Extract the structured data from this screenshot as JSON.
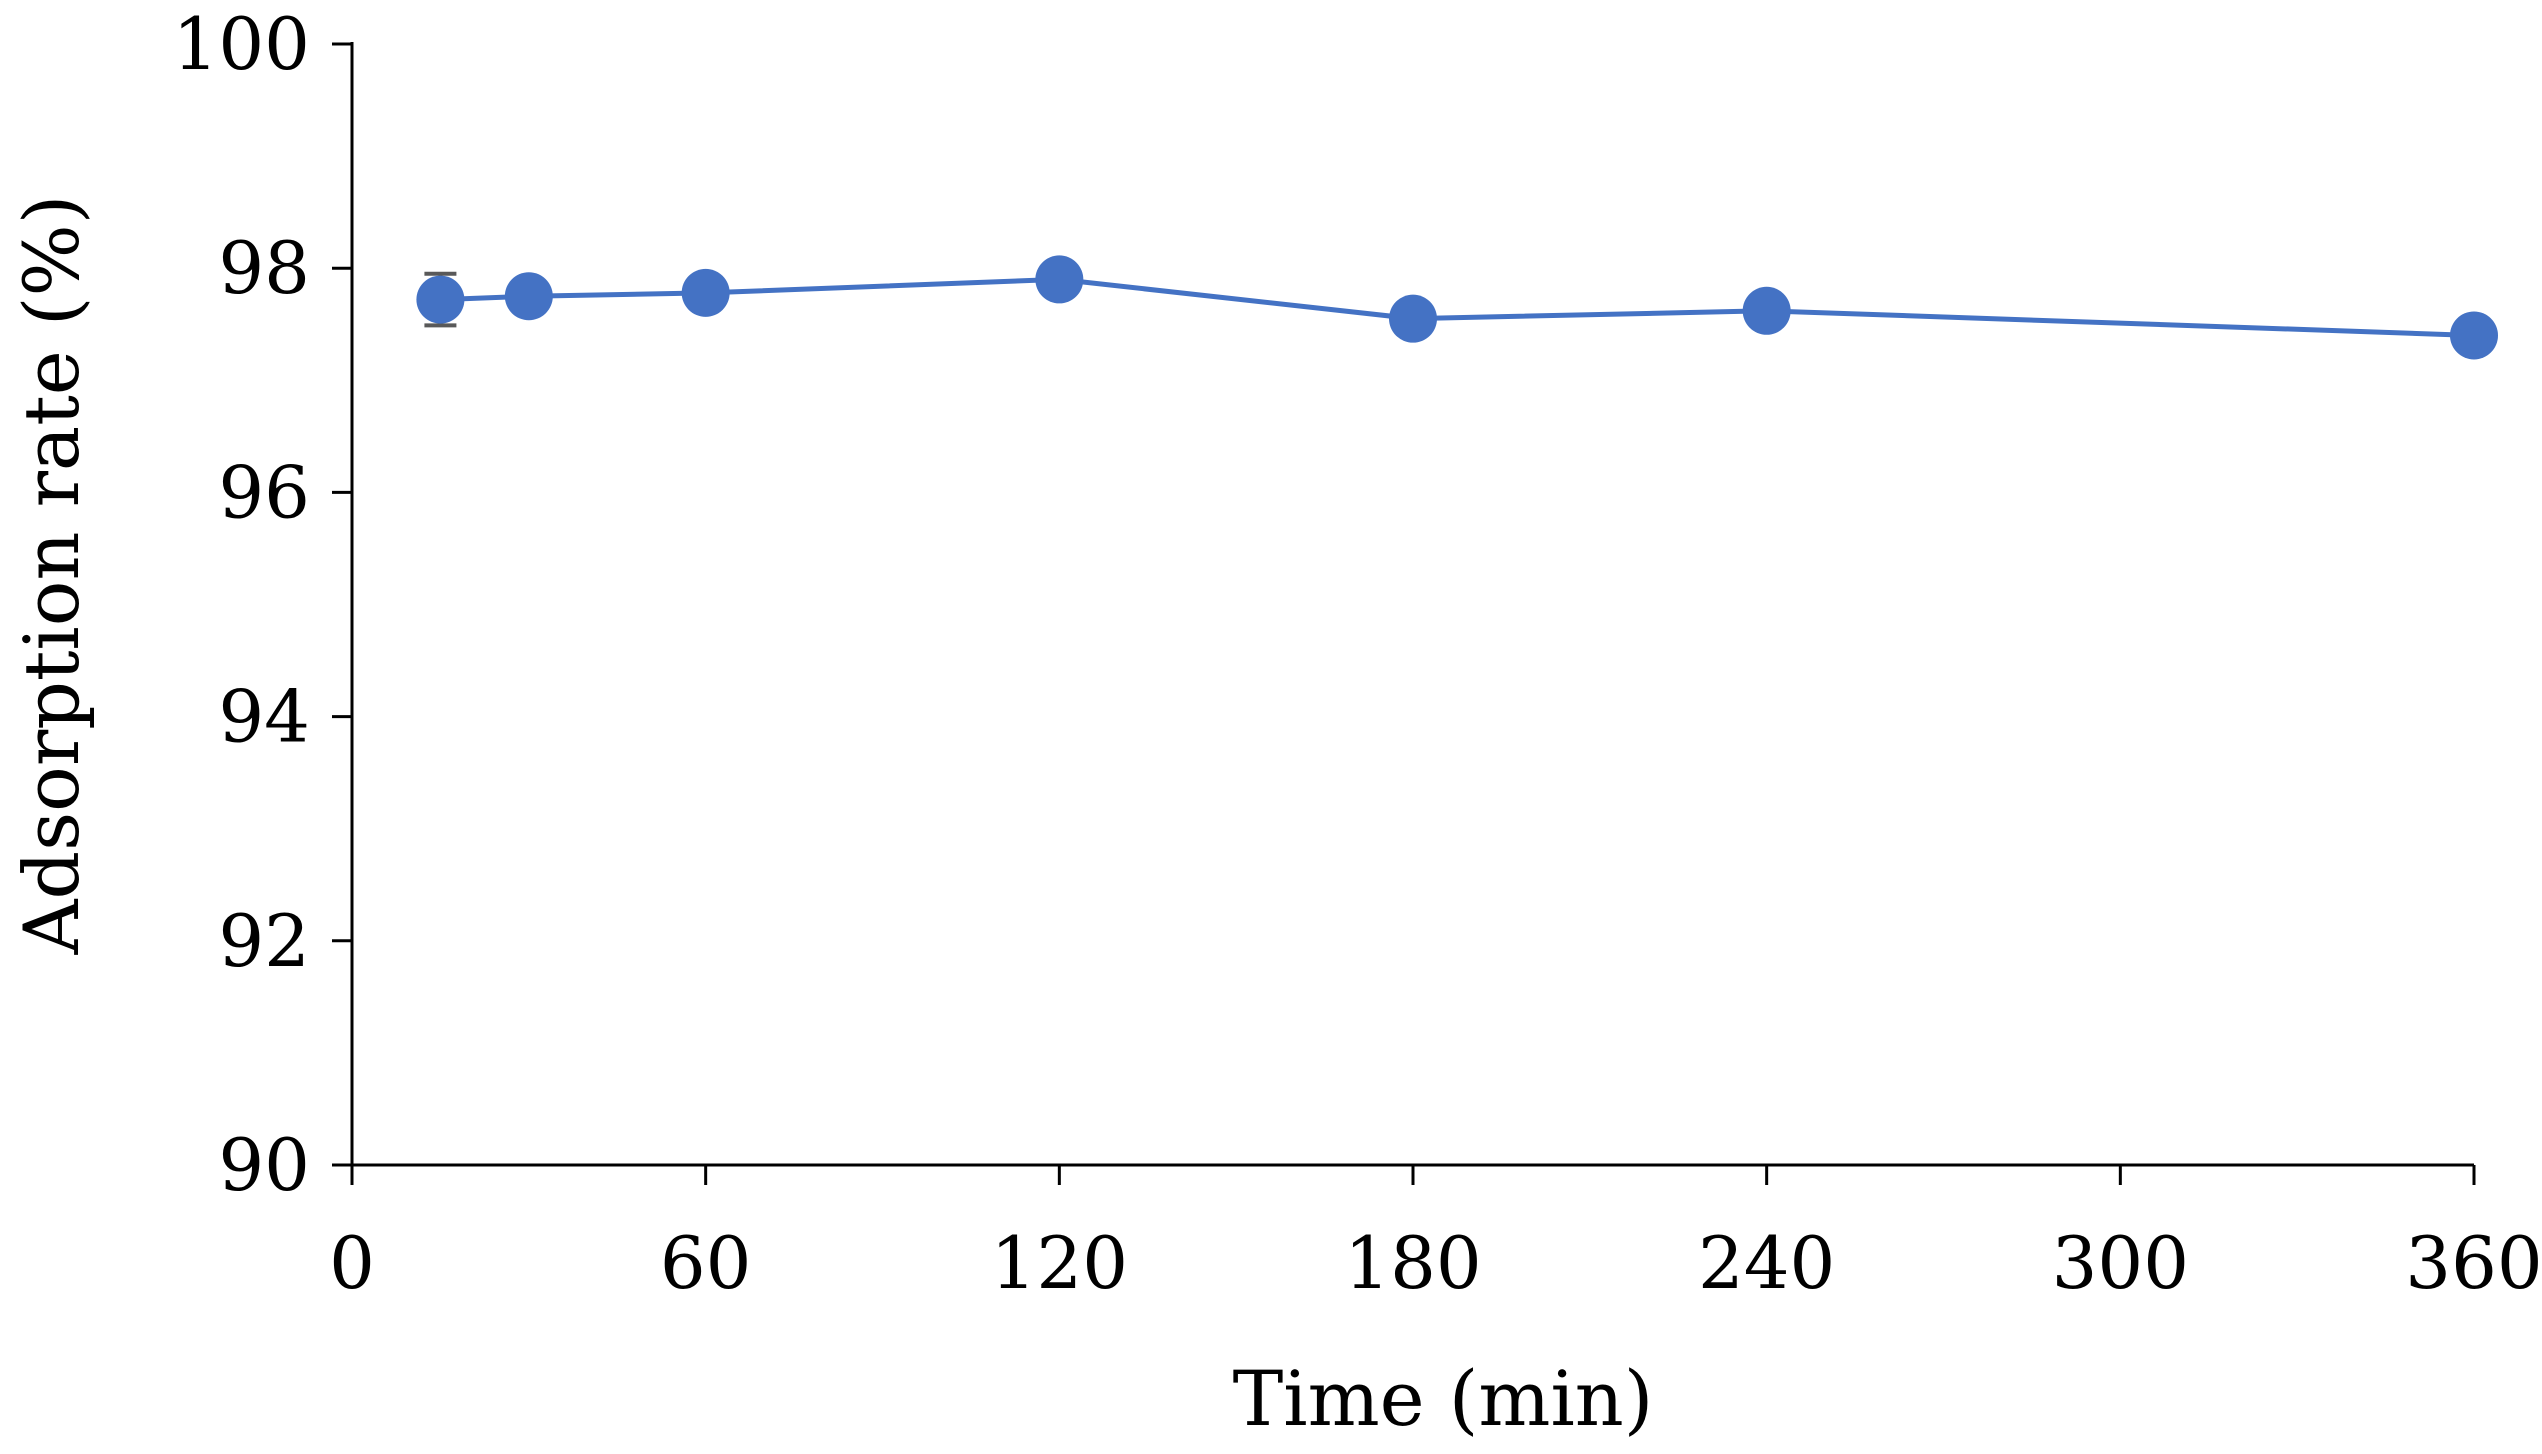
{
  "chart_data": {
    "type": "line",
    "title": "",
    "xlabel": "Time (min)",
    "ylabel": "Adsorption rate (%)",
    "xlim": [
      0,
      360
    ],
    "ylim": [
      90,
      100
    ],
    "xticks": [
      0,
      60,
      120,
      180,
      240,
      300,
      360
    ],
    "yticks": [
      90,
      92,
      94,
      96,
      98,
      100
    ],
    "grid": false,
    "legend": "none",
    "series": [
      {
        "color": "#4472C4",
        "marker": "circle",
        "x": [
          15,
          30,
          60,
          120,
          180,
          240,
          360
        ],
        "y": [
          97.72,
          97.75,
          97.78,
          97.9,
          97.55,
          97.62,
          97.4
        ],
        "error": [
          0.23,
          0,
          0,
          0,
          0,
          0,
          0
        ]
      }
    ],
    "error_bar_color": "#595959"
  }
}
